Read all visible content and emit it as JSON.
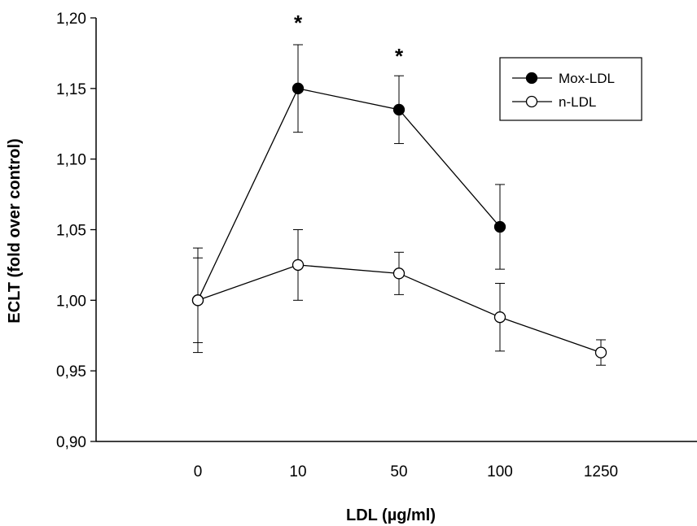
{
  "chart_data": {
    "type": "line",
    "xlabel": "LDL (µg/ml)",
    "ylabel": "ECLT (fold over control)",
    "categories": [
      "0",
      "10",
      "50",
      "100",
      "1250"
    ],
    "ylim": [
      0.9,
      1.2
    ],
    "yticks": [
      "0,90",
      "0,95",
      "1,00",
      "1,05",
      "1,10",
      "1,15",
      "1,20"
    ],
    "legend_position": "top-right",
    "series": [
      {
        "name": "Mox-LDL",
        "marker": "filled-circle",
        "values": [
          1.0,
          1.15,
          1.135,
          1.052,
          null
        ],
        "errors": [
          0.03,
          0.031,
          0.024,
          0.03,
          null
        ]
      },
      {
        "name": "n-LDL",
        "marker": "open-circle",
        "values": [
          1.0,
          1.025,
          1.019,
          0.988,
          0.963
        ],
        "errors": [
          0.037,
          0.025,
          0.015,
          0.024,
          0.009
        ]
      }
    ],
    "annotations": [
      {
        "text": "*",
        "category": "10"
      },
      {
        "text": "*",
        "category": "50"
      }
    ]
  }
}
